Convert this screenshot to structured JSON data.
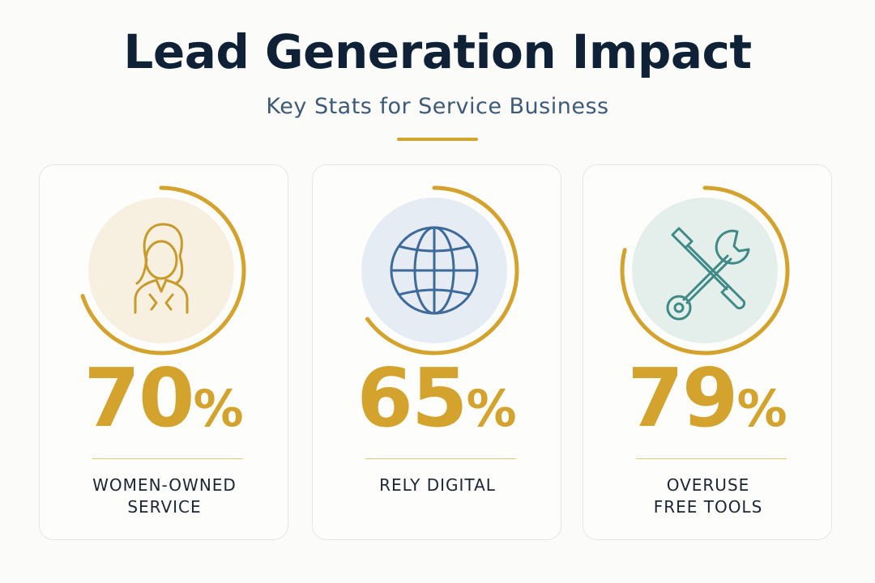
{
  "header": {
    "title": "Lead Generation Impact",
    "subtitle": "Key Stats for Service Business"
  },
  "accent_color": "#d4a32e",
  "stats": [
    {
      "icon": "woman-icon",
      "number": "70",
      "unit": "%",
      "percent": 70,
      "label": "WOMEN-OWNED\nSERVICE",
      "icon_bg": "#f7f0e1",
      "icon_color": "#c89a2b"
    },
    {
      "icon": "globe-icon",
      "number": "65",
      "unit": "%",
      "percent": 65,
      "label": "RELY DIGITAL",
      "icon_bg": "#e6ecf4",
      "icon_color": "#3e6a99"
    },
    {
      "icon": "tools-icon",
      "number": "79",
      "unit": "%",
      "percent": 79,
      "label": "OVERUSE\nFREE TOOLS",
      "icon_bg": "#e4efec",
      "icon_color": "#3f8a86"
    }
  ]
}
